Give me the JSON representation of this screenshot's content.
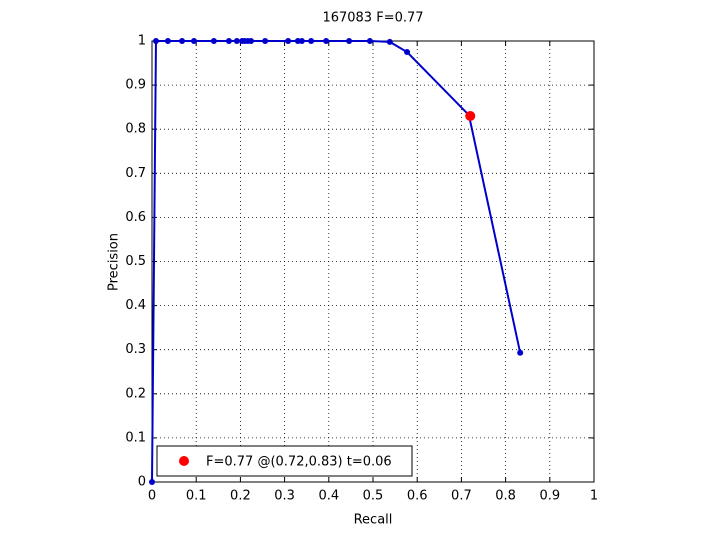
{
  "chart_data": {
    "type": "line",
    "title": "167083 F=0.77",
    "xlabel": "Recall",
    "ylabel": "Precision",
    "xlim": [
      0,
      1
    ],
    "ylim": [
      0,
      1
    ],
    "xticks": [
      0,
      0.1,
      0.2,
      0.3,
      0.4,
      0.5,
      0.6,
      0.7,
      0.8,
      0.9,
      1
    ],
    "yticks": [
      0,
      0.1,
      0.2,
      0.3,
      0.4,
      0.5,
      0.6,
      0.7,
      0.8,
      0.9,
      1
    ],
    "grid": true,
    "legend": "lower left",
    "series": [
      {
        "color": "#0000cc",
        "x": [
          0,
          0.009,
          0.036,
          0.068,
          0.095,
          0.14,
          0.174,
          0.192,
          0.204,
          0.21,
          0.217,
          0.224,
          0.256,
          0.308,
          0.33,
          0.339,
          0.36,
          0.394,
          0.446,
          0.493,
          0.538,
          0.577,
          0.717,
          0.833
        ],
        "values": [
          0,
          1,
          1,
          1,
          1,
          1,
          1,
          1,
          1,
          1,
          1,
          1,
          1,
          1,
          1,
          1,
          1,
          1,
          1,
          1,
          0.998,
          0.975,
          0.832,
          0.293
        ]
      },
      {
        "name": "F=0.77 @(0.72,0.83) t=0.06",
        "color": "#ff0000",
        "x": [
          0.72
        ],
        "values": [
          0.83
        ]
      }
    ]
  }
}
